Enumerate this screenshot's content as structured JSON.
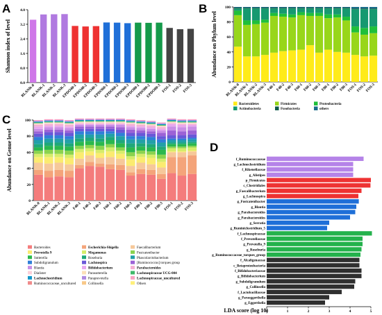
{
  "panels": {
    "A": {
      "letter": "A"
    },
    "B": {
      "letter": "B"
    },
    "C": {
      "letter": "C"
    },
    "D": {
      "letter": "D"
    }
  },
  "chart_data": [
    {
      "id": "A",
      "type": "bar",
      "ylabel": "Shannon index of level",
      "ylim": [
        0,
        4.0
      ],
      "yticks": [
        0.0,
        0.8,
        1.6,
        2.4,
        3.2,
        4.0
      ],
      "categories": [
        "BLANK-0",
        "BLANK-1",
        "BLANK-2",
        "BLANK-3",
        "EPDO40-1",
        "EPDO40-2",
        "EPDO40-3",
        "EPDO60-1",
        "EPDO60-2",
        "EPDO60-3",
        "EPDO80-1",
        "EPDO80-2",
        "EPDO80-3",
        "FOS-1",
        "FOS-2",
        "FOS-3"
      ],
      "values": [
        3.45,
        3.74,
        3.75,
        3.76,
        3.11,
        3.08,
        3.1,
        3.3,
        3.29,
        3.26,
        3.29,
        3.28,
        3.29,
        3.0,
        2.93,
        2.95
      ],
      "colors": [
        "#cf77e8",
        "#b07ae0",
        "#b07ae0",
        "#b07ae0",
        "#ee3232",
        "#ee3232",
        "#ee3232",
        "#1f6fd8",
        "#1f6fd8",
        "#1f6fd8",
        "#159a4a",
        "#159a4a",
        "#159a4a",
        "#444444",
        "#444444",
        "#444444"
      ]
    },
    {
      "id": "B",
      "type": "bar",
      "stacked": true,
      "ylabel": "Abundance on Phylum level",
      "ylim": [
        0,
        100
      ],
      "yticks": [
        0,
        20,
        40,
        60,
        80,
        100
      ],
      "categories": [
        "BLANK-0",
        "BLANK-1",
        "BLANK-2",
        "BLANK-3",
        "F40-1",
        "F40-2",
        "F40-3",
        "F60-1",
        "F60-2",
        "F60-3",
        "F80-1",
        "F80-2",
        "F80-3",
        "FOS-1",
        "FOS-2",
        "FOS-3"
      ],
      "series": [
        {
          "name": "Bacteroidetes",
          "color": "#ffeb1a",
          "values": [
            47,
            34,
            34,
            36,
            39,
            41,
            42,
            43,
            49,
            39,
            43,
            40,
            39,
            36,
            34,
            35
          ]
        },
        {
          "name": "Firmicutes",
          "color": "#98d61a",
          "values": [
            42,
            42,
            43,
            43,
            49,
            46,
            44,
            46,
            39,
            49,
            42,
            46,
            43,
            30,
            29,
            30
          ]
        },
        {
          "name": "Proteobacteria",
          "color": "#1fbf3a",
          "values": [
            6,
            6,
            5,
            4,
            4,
            4,
            4,
            4,
            4,
            4,
            5,
            4,
            5,
            8,
            9,
            9
          ]
        },
        {
          "name": "Actinobacteria",
          "color": "#169970",
          "values": [
            3,
            16,
            16,
            15,
            6,
            7,
            8,
            5,
            6,
            6,
            8,
            8,
            11,
            23,
            25,
            23
          ]
        },
        {
          "name": "Fusobacteria",
          "color": "#0e5a4a",
          "values": [
            1,
            1,
            1,
            1,
            1,
            1,
            1,
            1,
            1,
            1,
            1,
            1,
            1,
            1,
            1,
            1
          ]
        },
        {
          "name": "others",
          "color": "#1a6d8a",
          "values": [
            1,
            1,
            1,
            1,
            1,
            1,
            1,
            1,
            1,
            1,
            1,
            1,
            1,
            2,
            2,
            2
          ]
        }
      ]
    },
    {
      "id": "C",
      "type": "bar",
      "stacked": true,
      "ylabel": "Abundance on Genue level",
      "ylim": [
        0,
        100
      ],
      "yticks": [
        0,
        20,
        40,
        60,
        80,
        100
      ],
      "categories": [
        "BLANK-0",
        "BLANK-1",
        "BLANK-2",
        "BLANK-3",
        "F40-1",
        "F40-2",
        "F40-3",
        "F60-1",
        "F60-2",
        "F60-3",
        "F80-1",
        "F80-2",
        "F80-3",
        "FOS-1",
        "FOS-2",
        "FOS-3"
      ],
      "series": [
        {
          "name": "Bacteroides",
          "bold": false,
          "color": "#f47c7c",
          "values": [
            32,
            29,
            30,
            29,
            40,
            43,
            42,
            39,
            38,
            31,
            33,
            32,
            27,
            34,
            31,
            33
          ]
        },
        {
          "name": "Escherichia-Shigella",
          "bold": true,
          "color": "#f4a47a",
          "values": [
            6,
            8,
            8,
            8,
            4,
            5,
            4,
            6,
            6,
            4,
            6,
            6,
            6,
            20,
            23,
            23
          ]
        },
        {
          "name": "Faecalibacterium",
          "bold": false,
          "color": "#f6c89a",
          "values": [
            9,
            9,
            9,
            8,
            8,
            8,
            7,
            9,
            8,
            8,
            8,
            7,
            8,
            6,
            6,
            5
          ]
        },
        {
          "name": "Prevotella 9",
          "bold": true,
          "color": "#fbeb70",
          "values": [
            7,
            8,
            7,
            8,
            8,
            5,
            6,
            7,
            6,
            8,
            7,
            8,
            7,
            1,
            1,
            1
          ]
        },
        {
          "name": "Megamonas",
          "bold": true,
          "color": "#d6ec6a",
          "values": [
            4,
            4,
            4,
            4,
            4,
            4,
            4,
            5,
            4,
            4,
            4,
            4,
            4,
            4,
            4,
            4
          ]
        },
        {
          "name": "Fusicatenibacter",
          "bold": false,
          "color": "#8ad34e",
          "values": [
            4,
            5,
            5,
            5,
            4,
            4,
            5,
            4,
            4,
            5,
            4,
            4,
            5,
            2,
            2,
            2
          ]
        },
        {
          "name": "Sutterella",
          "bold": false,
          "color": "#2bb84d",
          "values": [
            4,
            5,
            5,
            5,
            5,
            5,
            5,
            5,
            5,
            6,
            5,
            5,
            6,
            3,
            3,
            3
          ]
        },
        {
          "name": "Roseburia",
          "bold": false,
          "color": "#1fa87a",
          "values": [
            4,
            4,
            4,
            4,
            4,
            4,
            4,
            4,
            4,
            5,
            4,
            4,
            4,
            2,
            2,
            2
          ]
        },
        {
          "name": "Phascolarctobacterium",
          "bold": false,
          "color": "#22a0a8",
          "values": [
            5,
            5,
            5,
            5,
            5,
            4,
            5,
            4,
            5,
            5,
            5,
            5,
            5,
            3,
            3,
            3
          ]
        },
        {
          "name": "Subdoligranulum",
          "bold": false,
          "color": "#2f7fd8",
          "values": [
            4,
            4,
            4,
            4,
            4,
            4,
            4,
            3,
            4,
            4,
            4,
            4,
            4,
            2,
            2,
            2
          ]
        },
        {
          "name": "Lachnospira",
          "bold": true,
          "color": "#6a58d8",
          "values": [
            4,
            4,
            4,
            4,
            3,
            3,
            3,
            3,
            4,
            4,
            4,
            4,
            4,
            4,
            4,
            4
          ]
        },
        {
          "name": "[Ruminococcus] torques group",
          "bold": false,
          "color": "#9c62d6",
          "values": [
            3,
            3,
            3,
            3,
            3,
            3,
            3,
            3,
            3,
            4,
            3,
            3,
            4,
            6,
            5,
            5
          ]
        },
        {
          "name": "Blautia",
          "bold": false,
          "color": "#c88fe6",
          "values": [
            3,
            3,
            3,
            3,
            2,
            2,
            2,
            2,
            3,
            3,
            3,
            3,
            3,
            5,
            5,
            5
          ]
        },
        {
          "name": "Bifidobacterium",
          "bold": true,
          "color": "#e8a8ee",
          "values": [
            3,
            2,
            2,
            2,
            1,
            1,
            1,
            1,
            1,
            2,
            2,
            2,
            2,
            3,
            3,
            2
          ]
        },
        {
          "name": "Parabacteroides",
          "bold": true,
          "color": "#f5b0d2",
          "values": [
            2,
            2,
            2,
            2,
            1,
            1,
            1,
            1,
            1,
            2,
            2,
            2,
            2,
            1,
            1,
            1
          ]
        },
        {
          "name": "Dialister",
          "bold": false,
          "color": "#fbd0d8",
          "values": [
            1,
            1,
            1,
            1,
            1,
            1,
            1,
            1,
            1,
            1,
            1,
            1,
            1,
            1,
            1,
            1
          ]
        },
        {
          "name": "Parasutterella",
          "bold": false,
          "color": "#fce0b8",
          "values": [
            1,
            1,
            1,
            1,
            1,
            1,
            1,
            1,
            1,
            1,
            1,
            1,
            1,
            1,
            1,
            1
          ]
        },
        {
          "name": "Lachnospiraceae UCG-004",
          "bold": true,
          "color": "#3fb96a",
          "values": [
            1,
            1,
            1,
            1,
            1,
            1,
            1,
            1,
            1,
            1,
            1,
            1,
            1,
            1,
            1,
            1
          ]
        },
        {
          "name": "Lachnoclostridium",
          "bold": true,
          "color": "#1496c8",
          "values": [
            1,
            1,
            1,
            1,
            1,
            1,
            1,
            1,
            1,
            1,
            1,
            1,
            1,
            1,
            1,
            1
          ]
        },
        {
          "name": "Paraprevotella",
          "bold": false,
          "color": "#b08ae0",
          "values": [
            1,
            1,
            1,
            1,
            1,
            1,
            1,
            1,
            1,
            1,
            1,
            1,
            1,
            1,
            1,
            1
          ]
        },
        {
          "name": "Lachnospiraceae_uncultured",
          "bold": true,
          "color": "#f9a3c3",
          "values": [
            1,
            1,
            1,
            1,
            1,
            1,
            1,
            1,
            1,
            1,
            1,
            1,
            1,
            1,
            1,
            1
          ]
        },
        {
          "name": "Ruminococcaceae_uncultured",
          "bold": false,
          "color": "#f08a8a",
          "values": [
            0,
            0,
            0,
            0,
            0,
            0,
            0,
            0,
            0,
            0,
            0,
            0,
            0,
            0,
            0,
            0
          ]
        },
        {
          "name": "Collinsella",
          "bold": false,
          "color": "#f8c888",
          "values": [
            0,
            0,
            0,
            0,
            0,
            0,
            0,
            0,
            0,
            0,
            0,
            0,
            0,
            0,
            0,
            0
          ]
        },
        {
          "name": "Others",
          "bold": false,
          "color": "#fff07a",
          "values": [
            0,
            0,
            0,
            0,
            0,
            0,
            0,
            0,
            0,
            0,
            0,
            0,
            0,
            0,
            0,
            0
          ]
        }
      ]
    },
    {
      "id": "D",
      "type": "bar",
      "orientation": "horizontal",
      "xlabel": "LDA score (log 10)",
      "xlim": [
        0,
        5
      ],
      "xticks": [
        0,
        1,
        2,
        3,
        4,
        5
      ],
      "categories": [
        "f_Ruminococcaceae",
        "g_Lachnoclostridium",
        "f_Rikenellaceae",
        "g_Alistipes",
        "p_Firmicutes",
        "c_Clostridiales",
        "g_Faecalibacterium",
        "g_Lachnospira",
        "g_Fusicatenibacter",
        "g_Blautia",
        "g_Parabacteroides",
        "g_Parabacteroides",
        "g_Serratia",
        "g_Ruminiclostridium_5",
        "f_Lachnospiraceae",
        "f_Prevotellaceae",
        "g_Prevotella_9",
        "g_Roseburia",
        "g_Ruminococcaceae_torques_group",
        "f_Alcaligenaceae",
        "c_Betaproteobacteria",
        "f_Bifidobacteriaceae",
        "g_Bifidobacterium",
        "g_Subdoligranulum",
        "g_Collinsella",
        "f_Lactobacillaceae",
        "g_Paraeggerthella",
        "g_Eggerthella"
      ],
      "values": [
        4.65,
        4.15,
        4.15,
        4.15,
        5.0,
        4.98,
        4.55,
        4.4,
        4.42,
        4.3,
        4.25,
        4.0,
        3.0,
        2.9,
        5.05,
        4.6,
        4.6,
        4.55,
        4.5,
        4.45,
        4.45,
        4.55,
        4.55,
        4.25,
        4.2,
        3.6,
        3.0,
        2.8
      ],
      "colors": [
        "#b583e8",
        "#b583e8",
        "#b583e8",
        "#b583e8",
        "#ee3232",
        "#ee3232",
        "#ee3232",
        "#ee3232",
        "#1f6fd8",
        "#1f6fd8",
        "#1f6fd8",
        "#1f6fd8",
        "#1f6fd8",
        "#1f6fd8",
        "#24b24c",
        "#24b24c",
        "#24b24c",
        "#24b24c",
        "#24b24c",
        "#2f2f2f",
        "#2f2f2f",
        "#2f2f2f",
        "#2f2f2f",
        "#2f2f2f",
        "#2f2f2f",
        "#2f2f2f",
        "#2f2f2f",
        "#2f2f2f"
      ]
    }
  ]
}
